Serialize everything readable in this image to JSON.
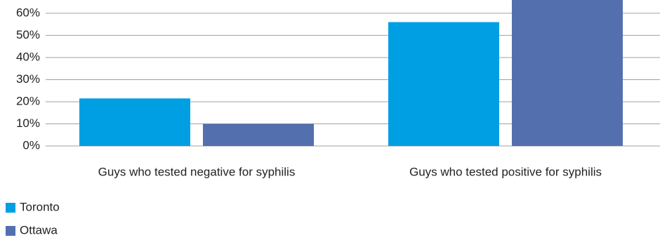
{
  "chart_data": {
    "type": "bar",
    "categories": [
      "Guys who tested negative for syphilis",
      "Guys who tested positive for syphilis"
    ],
    "series": [
      {
        "name": "Toronto",
        "color": "#009fe3",
        "values": [
          21.5,
          56
        ]
      },
      {
        "name": "Ottawa",
        "color": "#536fae",
        "values": [
          10,
          70
        ]
      }
    ],
    "ylim": [
      0,
      66
    ],
    "yticks": [
      {
        "value": 0,
        "label": "0%"
      },
      {
        "value": 10,
        "label": "10%"
      },
      {
        "value": 20,
        "label": "20%"
      },
      {
        "value": 30,
        "label": "30%"
      },
      {
        "value": 40,
        "label": "40%"
      },
      {
        "value": 50,
        "label": "50%"
      },
      {
        "value": 60,
        "label": "60%"
      }
    ],
    "grid": true,
    "legend": "bottom-left"
  }
}
